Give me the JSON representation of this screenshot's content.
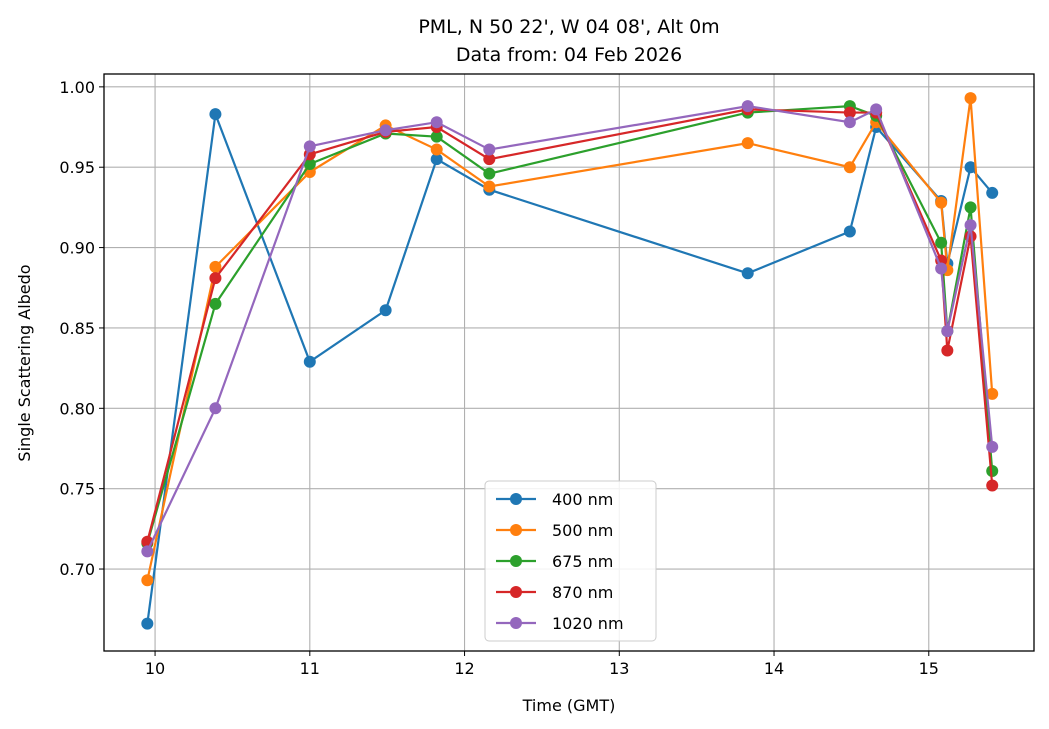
{
  "chart_data": {
    "type": "line",
    "title": "PML, N 50 22', W 04 08', Alt 0m",
    "subtitle": "Data from: 04 Feb 2026",
    "xlabel": "Time (GMT)",
    "ylabel": "Single Scattering Albedo",
    "xlim": [
      9.67,
      15.68
    ],
    "ylim": [
      0.649,
      1.008
    ],
    "xticks": [
      10,
      11,
      12,
      13,
      14,
      15
    ],
    "xtick_labels": [
      "10",
      "11",
      "12",
      "13",
      "14",
      "15"
    ],
    "yticks": [
      0.7,
      0.75,
      0.8,
      0.85,
      0.9,
      0.95,
      1.0
    ],
    "ytick_labels": [
      "0.70",
      "0.75",
      "0.80",
      "0.85",
      "0.90",
      "0.95",
      "1.00"
    ],
    "grid": true,
    "legend_position": "bottom-center",
    "x": [
      9.95,
      10.39,
      11.0,
      11.49,
      11.82,
      12.16,
      13.83,
      14.49,
      14.66,
      15.08,
      15.12,
      15.27,
      15.41
    ],
    "series": [
      {
        "name": "400 nm",
        "color": "#1f77b4",
        "values": [
          0.666,
          0.983,
          0.829,
          0.861,
          0.955,
          0.936,
          0.884,
          0.91,
          0.975,
          0.929,
          0.89,
          0.95,
          0.934
        ]
      },
      {
        "name": "500 nm",
        "color": "#ff7f0e",
        "values": [
          0.693,
          0.888,
          0.947,
          0.976,
          0.961,
          0.938,
          0.965,
          0.95,
          0.978,
          0.928,
          0.886,
          0.993,
          0.809
        ]
      },
      {
        "name": "675 nm",
        "color": "#2ca02c",
        "values": [
          0.716,
          0.865,
          0.952,
          0.971,
          0.969,
          0.946,
          0.984,
          0.988,
          0.982,
          0.903,
          0.848,
          0.925,
          0.761
        ]
      },
      {
        "name": "870 nm",
        "color": "#d62728",
        "values": [
          0.717,
          0.881,
          0.958,
          0.972,
          0.975,
          0.955,
          0.986,
          0.984,
          0.984,
          0.892,
          0.836,
          0.907,
          0.752
        ]
      },
      {
        "name": "1020 nm",
        "color": "#9467bd",
        "values": [
          0.711,
          0.8,
          0.963,
          0.973,
          0.978,
          0.961,
          0.988,
          0.978,
          0.986,
          0.887,
          0.848,
          0.914,
          0.776
        ]
      }
    ]
  }
}
